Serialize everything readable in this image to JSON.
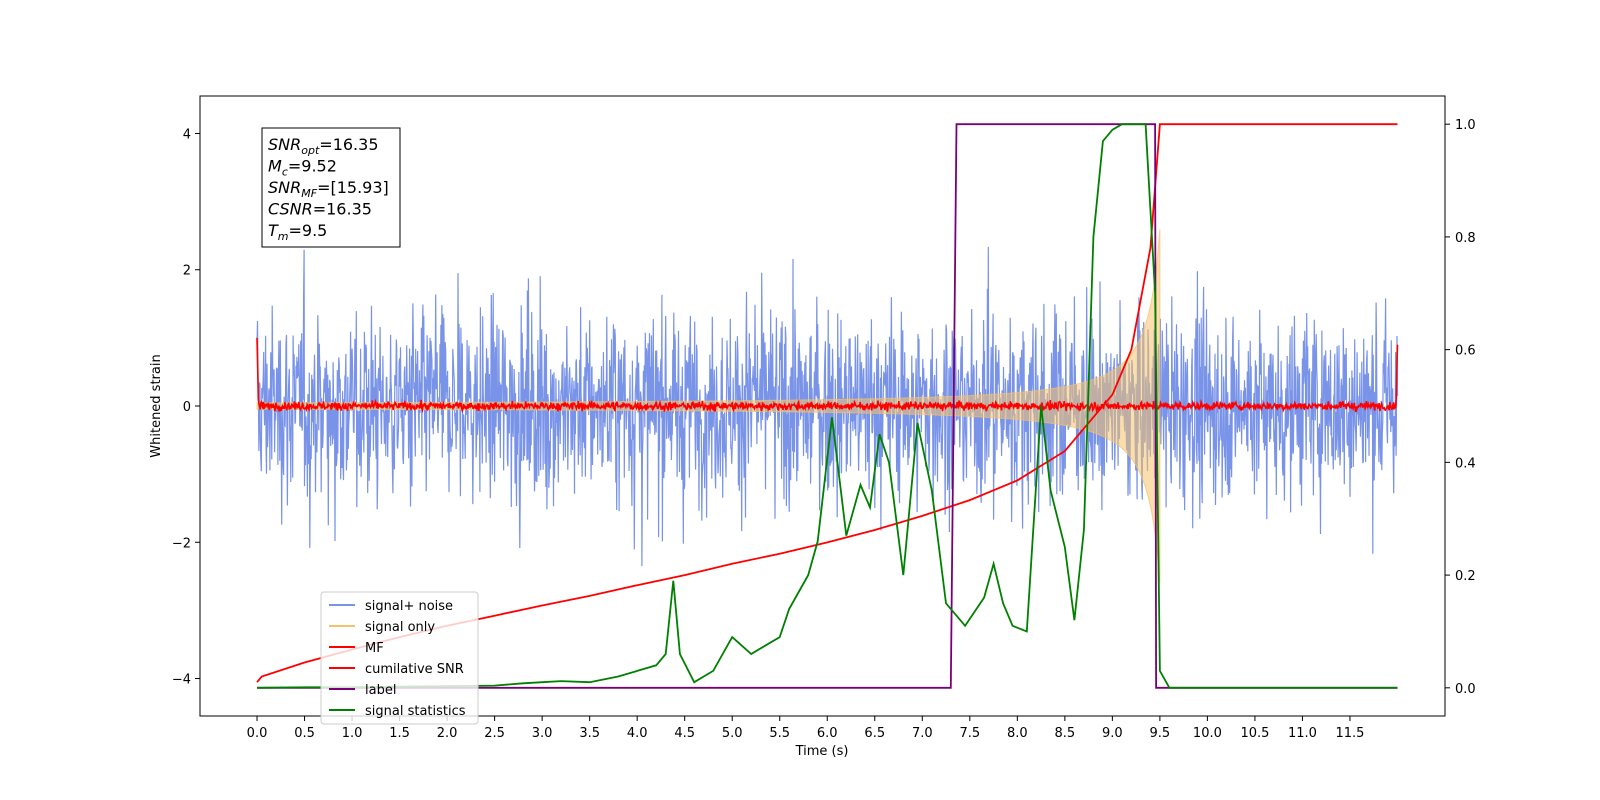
{
  "chart_data": {
    "type": "line",
    "xlabel": "Time (s)",
    "ylabel": "Whitened strain",
    "xlim": [
      -0.6,
      12.5
    ],
    "ylim": [
      -4.55,
      4.55
    ],
    "y2lim": [
      -0.05,
      1.05
    ],
    "x_ticks": [
      "0.0",
      "0.5",
      "1.0",
      "1.5",
      "2.0",
      "2.5",
      "3.0",
      "3.5",
      "4.0",
      "4.5",
      "5.0",
      "5.5",
      "6.0",
      "6.5",
      "7.0",
      "7.5",
      "8.0",
      "8.5",
      "9.0",
      "9.5",
      "10.0",
      "10.5",
      "11.0",
      "11.5"
    ],
    "y_ticks": [
      -4,
      -2,
      0,
      2,
      4
    ],
    "y_tick_labels": [
      "−4",
      "−2",
      "0",
      "2",
      "4"
    ],
    "y2_ticks": [
      "0.0",
      "0.2",
      "0.4",
      "0.6",
      "0.8",
      "1.0"
    ],
    "legend_position": "lower-left",
    "annotation": {
      "lines": [
        {
          "main": "SNR",
          "sub": "opt",
          "value": "=16.35"
        },
        {
          "main": "M",
          "sub": "c",
          "value": "=9.52"
        },
        {
          "main": "SNR",
          "sub": "MF",
          "value": "=[15.93]"
        },
        {
          "main": "CSNR",
          "sub": "",
          "value": "=16.35"
        },
        {
          "main": "T",
          "sub": "m",
          "value": "=9.5"
        }
      ]
    },
    "series": [
      {
        "name": "signal+ noise",
        "color": "#7893e8",
        "axis": "left",
        "style": "noise",
        "x_range": [
          0,
          12
        ],
        "amplitude": 1.9
      },
      {
        "name": "signal only",
        "color": "#f5c26b",
        "axis": "left",
        "style": "chirp",
        "x_range": [
          0,
          9.5
        ],
        "envelope_start": 0.02,
        "envelope_end": 2.6
      },
      {
        "name": "MF",
        "color": "#ff0000",
        "axis": "left",
        "style": "mf",
        "x_range": [
          0,
          12
        ],
        "amplitude": 0.06
      },
      {
        "name": "cumilative SNR",
        "color": "#ff0000",
        "axis": "right",
        "x": [
          0,
          0.05,
          0.5,
          1,
          1.5,
          2,
          2.5,
          3,
          3.5,
          4,
          4.5,
          5,
          5.5,
          6,
          6.5,
          7,
          7.5,
          8,
          8.5,
          9,
          9.2,
          9.4,
          9.5,
          9.6,
          12
        ],
        "y": [
          0.01,
          0.02,
          0.045,
          0.068,
          0.09,
          0.11,
          0.128,
          0.146,
          0.163,
          0.182,
          0.2,
          0.22,
          0.238,
          0.258,
          0.28,
          0.305,
          0.333,
          0.368,
          0.42,
          0.52,
          0.6,
          0.78,
          1.0,
          1.0,
          1.0
        ]
      },
      {
        "name": "label",
        "color": "#7a007a",
        "axis": "right",
        "x": [
          0,
          7.3,
          7.36,
          9.45,
          9.46,
          12
        ],
        "y": [
          0,
          0,
          1,
          1,
          0,
          0
        ]
      },
      {
        "name": "signal statistics",
        "color": "#008000",
        "axis": "right",
        "x": [
          0,
          0.5,
          1,
          1.5,
          2,
          2.5,
          2.8,
          3,
          3.2,
          3.5,
          3.8,
          4,
          4.2,
          4.3,
          4.38,
          4.45,
          4.6,
          4.7,
          4.8,
          5,
          5.2,
          5.4,
          5.5,
          5.6,
          5.8,
          5.9,
          6.05,
          6.2,
          6.35,
          6.45,
          6.55,
          6.65,
          6.8,
          6.95,
          7.1,
          7.25,
          7.45,
          7.65,
          7.75,
          7.85,
          7.95,
          8.1,
          8.25,
          8.35,
          8.5,
          8.6,
          8.7,
          8.8,
          8.9,
          9.0,
          9.1,
          9.2,
          9.35,
          9.45,
          9.5,
          9.6,
          10,
          11,
          12
        ],
        "y": [
          0,
          0.001,
          0.001,
          0.002,
          0.003,
          0.004,
          0.008,
          0.01,
          0.012,
          0.01,
          0.02,
          0.03,
          0.04,
          0.06,
          0.19,
          0.06,
          0.01,
          0.02,
          0.03,
          0.09,
          0.06,
          0.08,
          0.09,
          0.14,
          0.2,
          0.26,
          0.48,
          0.27,
          0.36,
          0.32,
          0.45,
          0.4,
          0.2,
          0.47,
          0.35,
          0.15,
          0.11,
          0.16,
          0.22,
          0.15,
          0.11,
          0.1,
          0.5,
          0.35,
          0.25,
          0.12,
          0.28,
          0.8,
          0.97,
          0.99,
          1.0,
          1.0,
          1.0,
          0.7,
          0.03,
          0.0,
          0.0,
          0.0,
          0.0
        ]
      }
    ]
  }
}
